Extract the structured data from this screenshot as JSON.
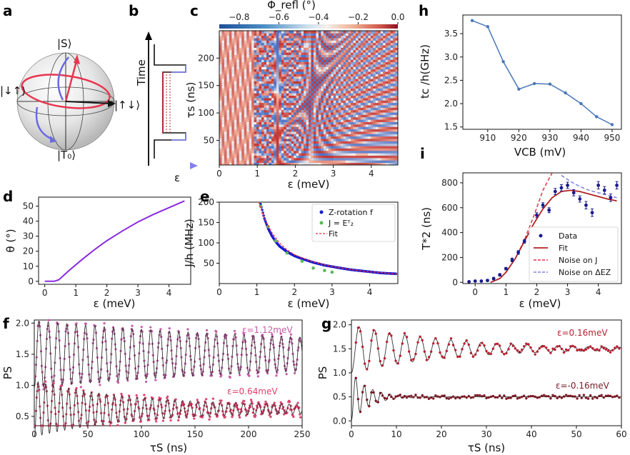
{
  "colors": {
    "sphere_red": "#e8364f",
    "sphere_blue": "#6b6be0",
    "purple": "#8a2be2",
    "line_blue": "#4a77b8",
    "fit_red": "#b22222",
    "dash_red": "#e83040",
    "dash_blue": "#8080e0",
    "marker_navy": "#1a1a8c",
    "green": "#5cb85c",
    "pink": "#c85aa8",
    "rose": "#e0406a",
    "maroon": "#9c2030"
  },
  "panels": {
    "a": {
      "letter": "a",
      "state_S": "|S⟩",
      "state_T0": "|T₀⟩",
      "state_du": "|↓↑⟩",
      "state_ud": "|↑↓⟩"
    },
    "b": {
      "letter": "b",
      "ylabel": "Time",
      "xlabel": "ε"
    },
    "c": {
      "letter": "c",
      "colorbar_label": "Φ_refl (°)",
      "xlabel": "ε (meV)",
      "ylabel": "τs (ns)"
    },
    "d": {
      "letter": "d",
      "xlabel": "ε (meV)",
      "ylabel": "θ (°)"
    },
    "e": {
      "letter": "e",
      "xlabel": "ε (meV)",
      "ylabel": "J/h (MHz)",
      "legend": [
        "Z-rotation f",
        "J = Eᵀ₂",
        "Fit"
      ]
    },
    "f": {
      "letter": "f",
      "xlabel": "τS (ns)",
      "ylabel": "PS",
      "annot_top": "ε=1.12meV",
      "annot_bot": "ε=0.64meV"
    },
    "g": {
      "letter": "g",
      "xlabel": "τS (ns)",
      "ylabel": "PS",
      "annot_top": "ε=0.16meV",
      "annot_bot": "ε=-0.16meV"
    },
    "h": {
      "letter": "h",
      "xlabel": "VCB (mV)",
      "ylabel": "tc /h(GHz)"
    },
    "i": {
      "letter": "i",
      "xlabel": "ε (meV)",
      "ylabel": "T*2 (ns)",
      "legend": [
        "Data",
        "Fit",
        "Noise on J",
        "Noise on ΔEZ"
      ]
    }
  },
  "chart_data": [
    {
      "panel": "c",
      "type": "heatmap",
      "xlabel": "ε (meV)",
      "ylabel": "τs (ns)",
      "colorbar_label": "Φrefl (°)",
      "xlim": [
        0,
        4.7
      ],
      "ylim": [
        5,
        250
      ],
      "xticks": [
        "0",
        "1",
        "2",
        "3",
        "4"
      ],
      "yticks": [
        "50",
        "100",
        "150",
        "200"
      ],
      "colorbar_ticks": [
        "−0.8",
        "−0.6",
        "−0.4",
        "−0.2",
        "0.0"
      ],
      "colorbar_range": [
        -0.9,
        0.0
      ]
    },
    {
      "panel": "d",
      "type": "line",
      "xlabel": "ε (meV)",
      "ylabel": "θ (°)",
      "x": [
        0.0,
        0.3,
        0.45,
        0.8,
        1.2,
        1.6,
        2.0,
        2.5,
        3.0,
        3.5,
        4.0,
        4.5
      ],
      "y": [
        0.0,
        0.0,
        1.0,
        7.5,
        14.5,
        21.0,
        27.0,
        33.5,
        39.5,
        44.5,
        49.0,
        53.5
      ],
      "xlim": [
        -0.2,
        4.7
      ],
      "ylim": [
        -2,
        56
      ],
      "xticks": [
        "0",
        "1",
        "2",
        "3",
        "4"
      ],
      "yticks": [
        "0",
        "10",
        "20",
        "30",
        "40",
        "50"
      ]
    },
    {
      "panel": "e",
      "type": "scatter",
      "xlabel": "ε (meV)",
      "ylabel": "J/h (MHz)",
      "xlim": [
        0,
        4.75
      ],
      "ylim": [
        0,
        200
      ],
      "xticks": [
        "0",
        "1",
        "2",
        "3",
        "4"
      ],
      "yticks": [
        "50",
        "100",
        "150",
        "200"
      ],
      "series": [
        {
          "name": "Z-rotation f",
          "x": [
            1.1,
            1.2,
            1.3,
            1.4,
            1.5,
            1.6,
            1.8,
            2.0,
            2.2,
            2.5,
            2.8,
            3.1,
            3.5,
            3.9,
            4.3,
            4.7
          ],
          "y": [
            195,
            160,
            135,
            117,
            103,
            92,
            78,
            68,
            61,
            52,
            45,
            40,
            34,
            30,
            26,
            24
          ]
        },
        {
          "name": "J = Eᵀ₂",
          "x": [
            1.1,
            1.3,
            1.5,
            1.8,
            2.2,
            2.5,
            2.8,
            3.0
          ],
          "y": [
            190,
            140,
            105,
            75,
            55,
            38,
            32,
            28
          ]
        },
        {
          "name": "Fit",
          "x": [
            1.05,
            1.2,
            1.4,
            1.6,
            1.8,
            2.0,
            2.4,
            2.8,
            3.2,
            3.6,
            4.0,
            4.4,
            4.75
          ],
          "y": [
            200,
            160,
            125,
            100,
            83,
            71,
            56,
            46,
            39,
            33,
            29,
            26,
            23
          ]
        }
      ]
    },
    {
      "panel": "f",
      "type": "scatter",
      "xlabel": "τS (ns)",
      "ylabel": "PS",
      "xlim": [
        0,
        250
      ],
      "ylim": [
        0.35,
        2.05
      ],
      "xticks": [
        "0",
        "50",
        "100",
        "150",
        "200",
        "250"
      ],
      "yticks": [
        "0.5",
        "1.0",
        "1.5",
        "2.0"
      ],
      "series": [
        {
          "name": "ε=1.12meV",
          "offset": 1.5,
          "amplitude": 0.42,
          "decay_ns": 250,
          "period_ns": 8.7,
          "damped_amplitude": 0.12
        },
        {
          "name": "ε=0.64meV",
          "offset": 0.62,
          "amplitude": 0.4,
          "decay_ns": 90,
          "period_ns": 7.1,
          "damped_amplitude": 0.05
        }
      ]
    },
    {
      "panel": "g",
      "type": "scatter",
      "xlabel": "τS (ns)",
      "ylabel": "PS",
      "xlim": [
        0,
        60
      ],
      "ylim": [
        -0.1,
        2.1
      ],
      "xticks": [
        "0",
        "10",
        "20",
        "30",
        "40",
        "50",
        "60"
      ],
      "yticks": [
        "0.0",
        "0.5",
        "1.0",
        "1.5",
        "2.0"
      ],
      "series": [
        {
          "name": "ε=0.16meV",
          "offset": 1.5,
          "amplitude": 0.5,
          "decay_ns": 22,
          "period_ns": 3.4
        },
        {
          "name": "ε=-0.16meV",
          "offset": 0.5,
          "amplitude": 0.5,
          "decay_ns": 4,
          "period_ns": 1.9
        }
      ]
    },
    {
      "panel": "h",
      "type": "line",
      "xlabel": "VCB (mV)",
      "ylabel": "tc /h(GHz)",
      "x": [
        905,
        910,
        915,
        920,
        925,
        930,
        935,
        940,
        945,
        950
      ],
      "y": [
        3.78,
        3.65,
        2.9,
        2.31,
        2.43,
        2.42,
        2.23,
        2.0,
        1.72,
        1.55
      ],
      "xlim": [
        902,
        953
      ],
      "ylim": [
        1.45,
        3.9
      ],
      "xticks": [
        "910",
        "920",
        "930",
        "940",
        "950"
      ],
      "yticks": [
        "1.5",
        "2.0",
        "2.5",
        "3.0",
        "3.5"
      ]
    },
    {
      "panel": "i",
      "type": "scatter",
      "xlabel": "ε (meV)",
      "ylabel": "T*2 (ns)",
      "xlim": [
        -0.4,
        4.75
      ],
      "ylim": [
        -10,
        880
      ],
      "xticks": [
        "0",
        "1",
        "2",
        "3",
        "4"
      ],
      "yticks": [
        "0",
        "200",
        "400",
        "600",
        "800"
      ],
      "series": [
        {
          "name": "Data",
          "x": [
            -0.2,
            0.0,
            0.2,
            0.4,
            0.6,
            0.8,
            1.0,
            1.2,
            1.4,
            1.6,
            1.8,
            2.0,
            2.2,
            2.4,
            2.6,
            2.8,
            3.0,
            3.2,
            3.4,
            3.6,
            3.8,
            4.0,
            4.2,
            4.4,
            4.6
          ],
          "y": [
            5,
            10,
            10,
            15,
            30,
            60,
            110,
            180,
            240,
            330,
            400,
            540,
            620,
            580,
            730,
            760,
            780,
            720,
            670,
            620,
            560,
            780,
            740,
            680,
            780
          ],
          "err": [
            5,
            5,
            5,
            8,
            10,
            10,
            10,
            15,
            15,
            15,
            20,
            20,
            20,
            20,
            25,
            25,
            25,
            25,
            25,
            30,
            30,
            30,
            30,
            30,
            30
          ]
        },
        {
          "name": "Fit",
          "x": [
            0.5,
            0.8,
            1.0,
            1.3,
            1.6,
            1.9,
            2.2,
            2.5,
            2.8,
            3.1,
            3.4,
            3.7,
            4.0,
            4.3,
            4.6
          ],
          "y": [
            0,
            30,
            80,
            190,
            330,
            470,
            590,
            680,
            730,
            740,
            730,
            710,
            690,
            670,
            655
          ]
        },
        {
          "name": "Noise on J",
          "x": [
            0.5,
            0.8,
            1.0,
            1.3,
            1.6,
            1.9,
            2.2,
            2.5
          ],
          "y": [
            0,
            30,
            80,
            190,
            340,
            530,
            740,
            880
          ]
        },
        {
          "name": "Noise on ΔEZ",
          "x": [
            2.8,
            3.1,
            3.4,
            3.7,
            4.0,
            4.3,
            4.6
          ],
          "y": [
            860,
            810,
            770,
            740,
            720,
            700,
            680
          ]
        }
      ]
    }
  ]
}
